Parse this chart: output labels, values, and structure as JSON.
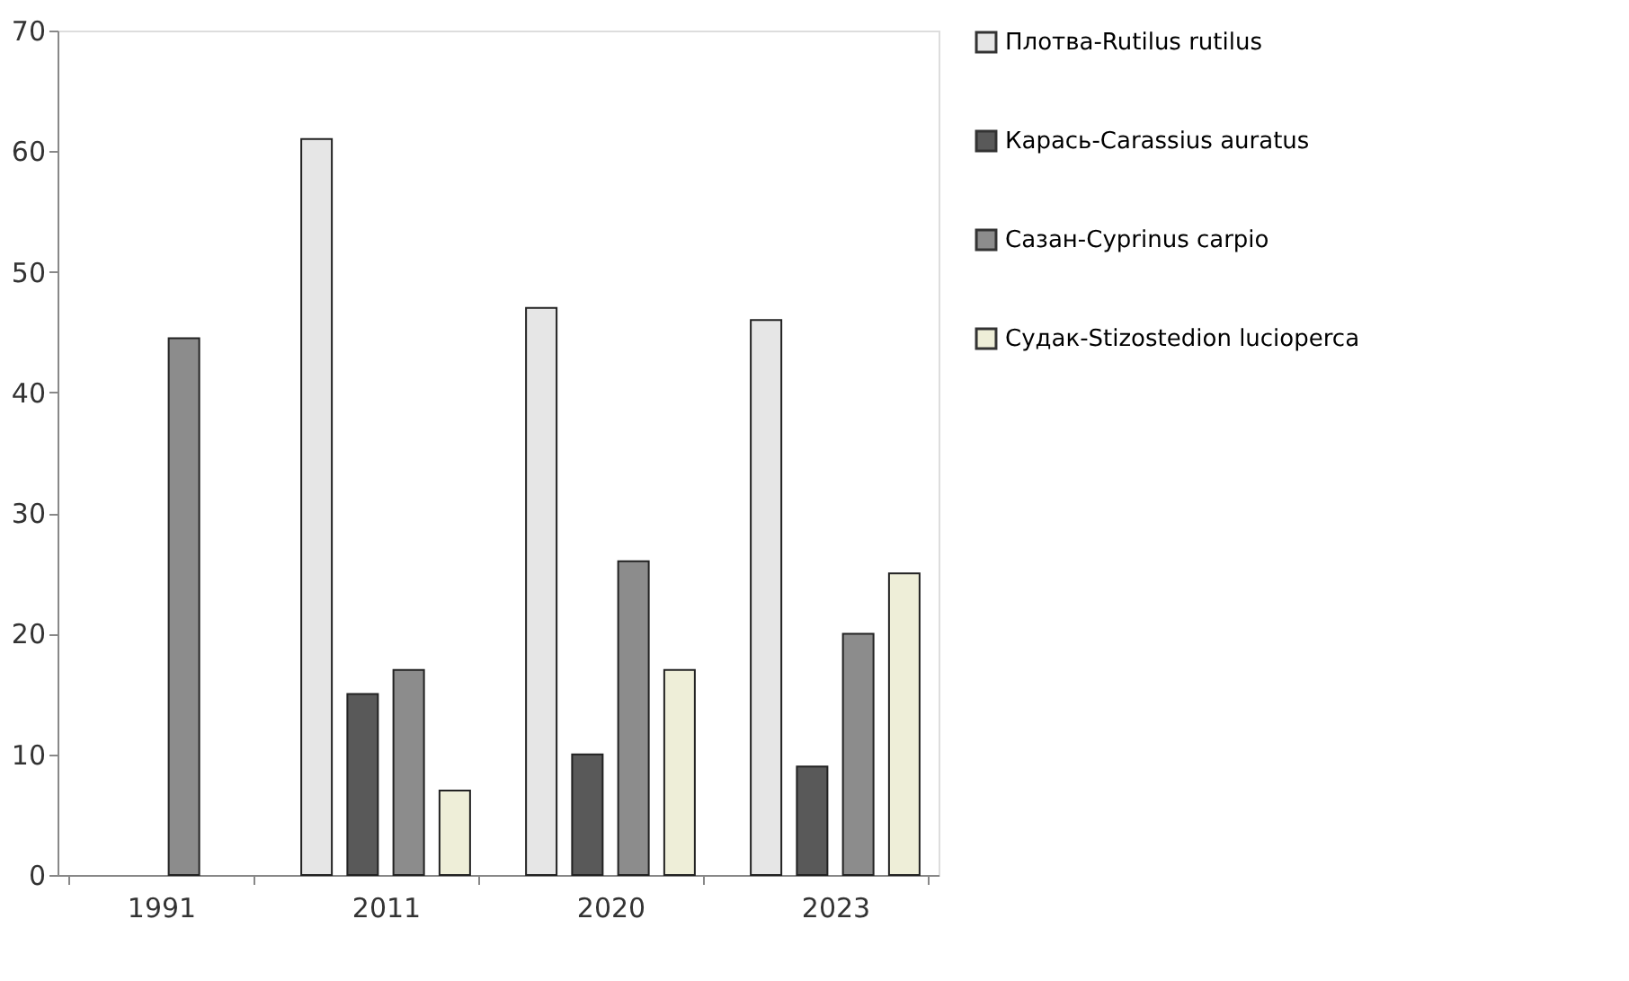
{
  "chart_data": {
    "type": "bar",
    "categories": [
      "1991",
      "2011",
      "2020",
      "2023"
    ],
    "series": [
      {
        "name": "Плотва-Rutilus rutilus",
        "color": "#e6e6e6",
        "values": [
          null,
          61,
          47,
          46
        ]
      },
      {
        "name": "Карась-Carassius auratus",
        "color": "#595959",
        "values": [
          null,
          15,
          10,
          9
        ]
      },
      {
        "name": "Сазан-Cyprinus carpio",
        "color": "#8c8c8c",
        "values": [
          44.5,
          17,
          26,
          20
        ]
      },
      {
        "name": "Судак-Stizostedion lucioperca",
        "color": "#eeeed8",
        "values": [
          null,
          7,
          17,
          25
        ]
      }
    ],
    "ylim": [
      0,
      70
    ],
    "yticks": [
      0,
      10,
      20,
      30,
      40,
      50,
      60,
      70
    ],
    "grid": false,
    "legend": "right"
  }
}
